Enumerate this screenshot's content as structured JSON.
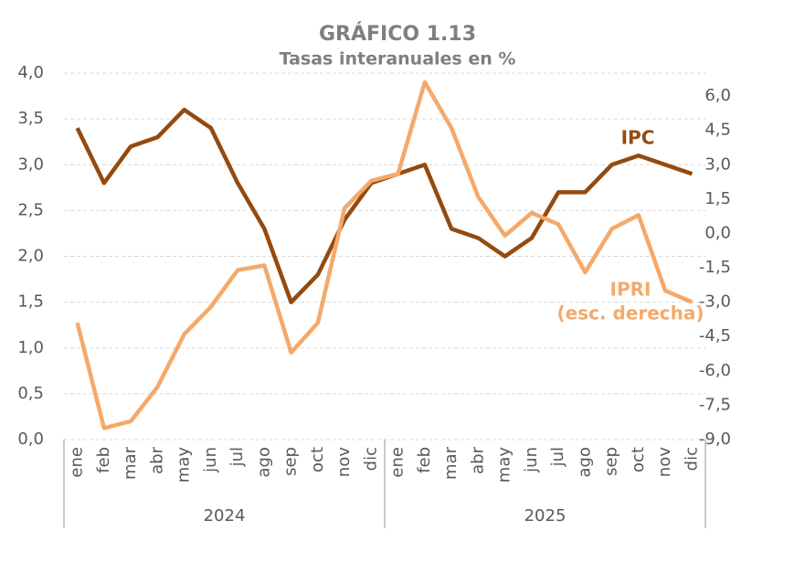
{
  "chart_data": {
    "type": "line",
    "title": "GRÁFICO 1.13",
    "subtitle": "Tasas interanuales en %",
    "categories": [
      "ene",
      "feb",
      "mar",
      "abr",
      "may",
      "jun",
      "jul",
      "ago",
      "sep",
      "oct",
      "nov",
      "dic",
      "ene",
      "feb",
      "mar",
      "abr",
      "may",
      "jun",
      "jul",
      "ago",
      "sep",
      "oct",
      "nov",
      "dic"
    ],
    "groups": [
      "2024",
      "2025"
    ],
    "series": [
      {
        "name": "IPC",
        "color": "#944a0f",
        "axis": "y",
        "values": [
          3.4,
          2.8,
          3.2,
          3.3,
          3.6,
          3.4,
          2.8,
          2.3,
          1.5,
          1.8,
          2.4,
          2.8,
          2.9,
          3.0,
          2.3,
          2.2,
          2.0,
          2.2,
          2.7,
          2.7,
          3.0,
          3.1,
          3.0,
          2.9
        ]
      },
      {
        "name": "IPRI",
        "color": "#f4a96b",
        "axis": "y2",
        "values": [
          -3.9,
          -8.5,
          -8.2,
          -6.7,
          -4.4,
          -3.2,
          -1.6,
          -1.4,
          -5.2,
          -3.9,
          1.1,
          2.3,
          2.6,
          6.6,
          4.6,
          1.6,
          -0.1,
          0.9,
          0.4,
          -1.7,
          0.2,
          0.8,
          -2.5,
          -3.0
        ]
      }
    ],
    "annotations": [
      "(esc. derecha)"
    ],
    "ylim": [
      0,
      4
    ],
    "yticks": [
      {
        "value": 0,
        "label": "0,0"
      },
      {
        "value": 0.5,
        "label": "0,5"
      },
      {
        "value": 1,
        "label": "1,0"
      },
      {
        "value": 1.5,
        "label": "1,5"
      },
      {
        "value": 2,
        "label": "2,0"
      },
      {
        "value": 2.5,
        "label": "2,5"
      },
      {
        "value": 3,
        "label": "3,0"
      },
      {
        "value": 3.5,
        "label": "3,5"
      },
      {
        "value": 4,
        "label": "4,0"
      }
    ],
    "y2lim": [
      -9,
      7
    ],
    "y2ticks": [
      {
        "value": -9,
        "label": "-9,0"
      },
      {
        "value": -7.5,
        "label": "-7,5"
      },
      {
        "value": -6,
        "label": "-6,0"
      },
      {
        "value": -4.5,
        "label": "-4,5"
      },
      {
        "value": -3,
        "label": "-3,0"
      },
      {
        "value": -1.5,
        "label": "-1,5"
      },
      {
        "value": 0,
        "label": "0,0"
      },
      {
        "value": 1.5,
        "label": "1,5"
      },
      {
        "value": 3,
        "label": "3,0"
      },
      {
        "value": 4.5,
        "label": "4,5"
      },
      {
        "value": 6,
        "label": "6,0"
      }
    ],
    "grid": true
  }
}
